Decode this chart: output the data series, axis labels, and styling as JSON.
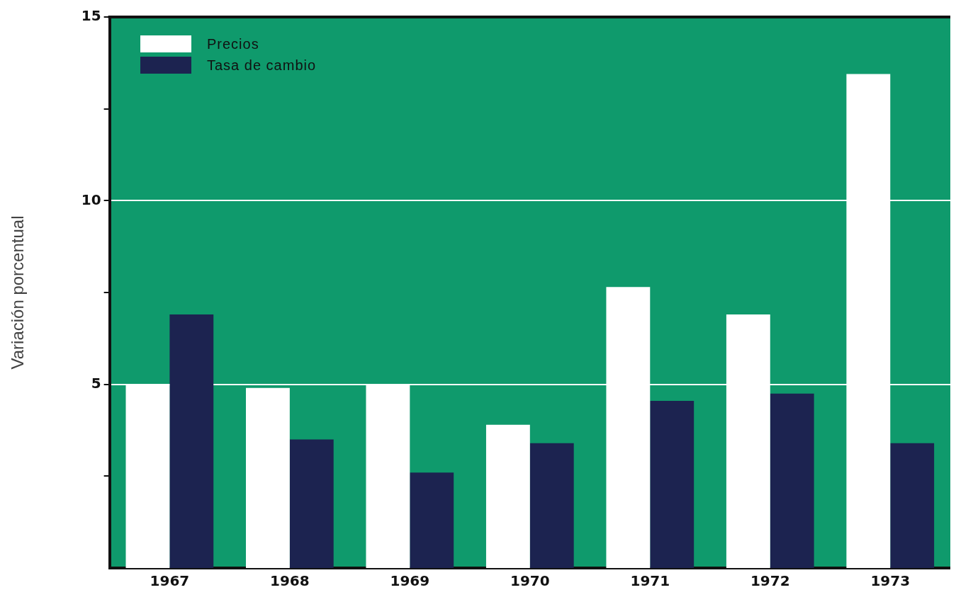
{
  "chart_data": {
    "type": "bar",
    "ylabel": "Variación porcentual",
    "categories": [
      "1967",
      "1968",
      "1969",
      "1970",
      "1971",
      "1972",
      "1973"
    ],
    "series": [
      {
        "name": "Precios",
        "color": "#ffffff",
        "values": [
          5.0,
          4.9,
          5.0,
          3.9,
          7.65,
          6.9,
          13.45
        ]
      },
      {
        "name": "Tasa de cambio",
        "color": "#1c2350",
        "values": [
          6.9,
          3.5,
          2.6,
          3.4,
          4.55,
          4.75,
          3.4
        ]
      }
    ],
    "ylim": [
      0,
      15
    ],
    "yticks": [
      {
        "value": 2.5,
        "label": null
      },
      5,
      {
        "value": 7.5,
        "label": null
      },
      10,
      {
        "value": 12.5,
        "label": null
      },
      15
    ],
    "grid": "y",
    "legend": "top left"
  }
}
